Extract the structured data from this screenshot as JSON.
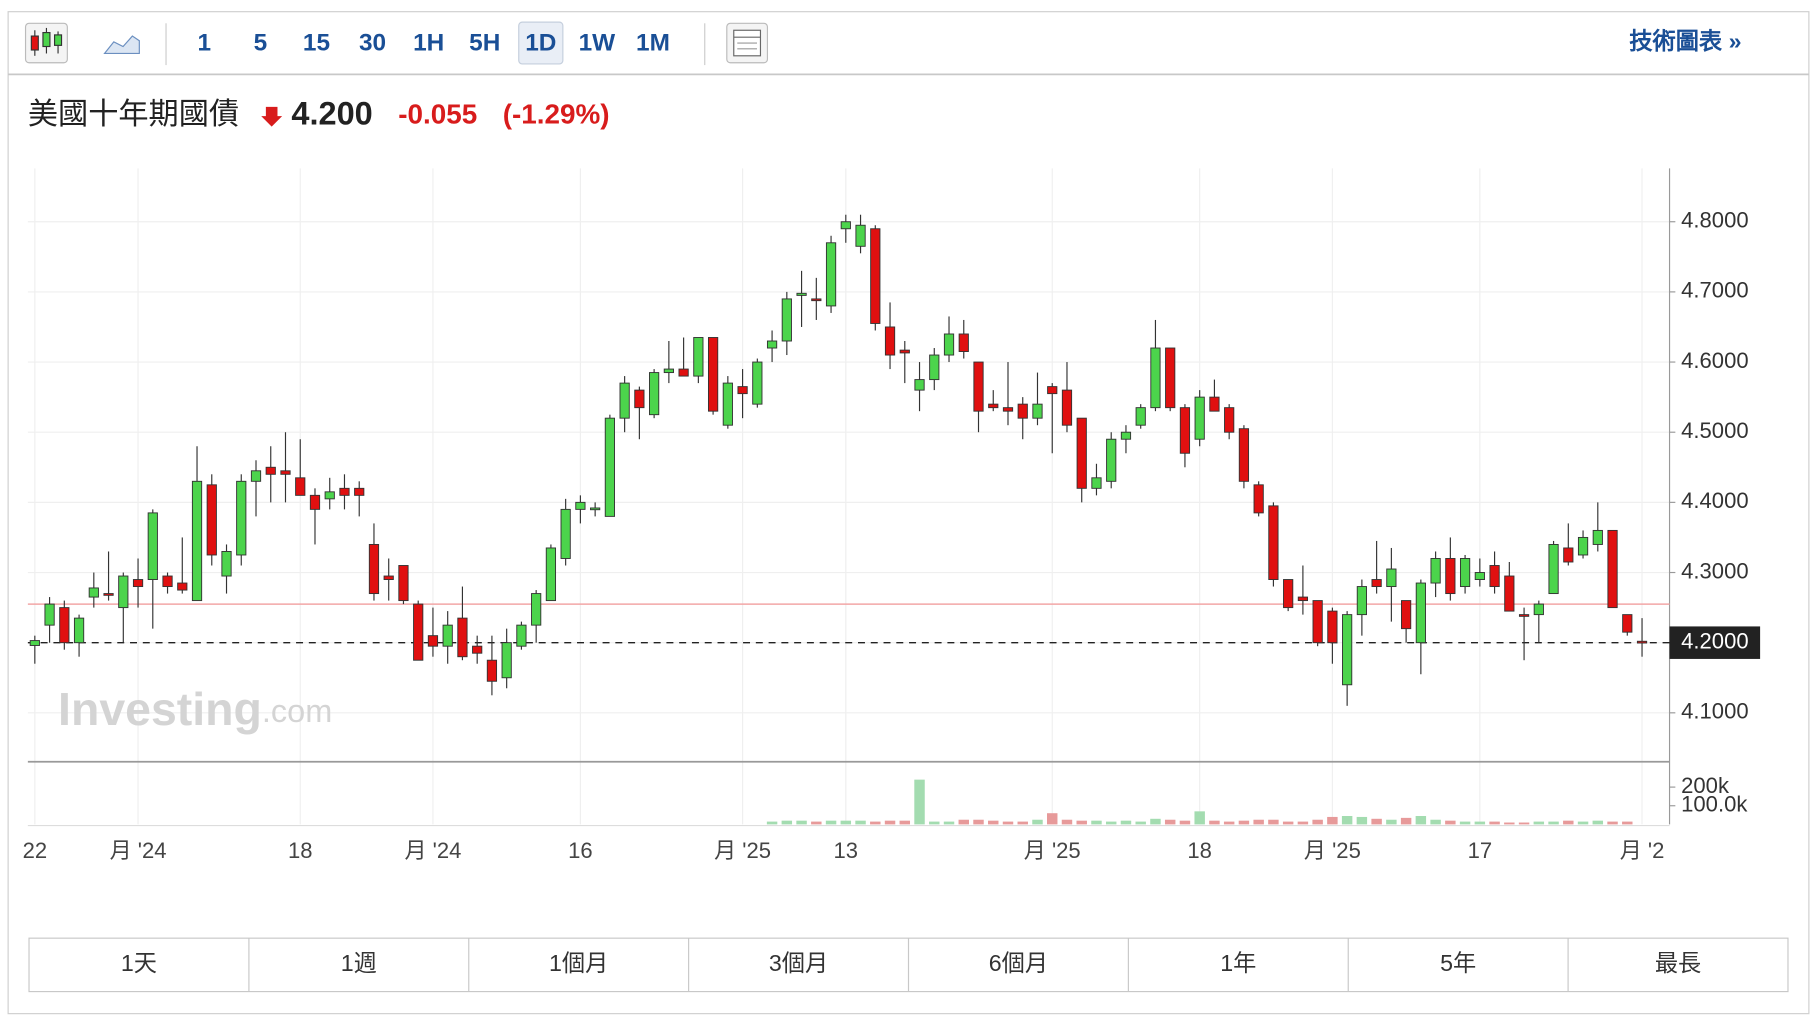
{
  "toolbar": {
    "intervals": [
      "1",
      "5",
      "15",
      "30",
      "1H",
      "5H",
      "1D",
      "1W",
      "1M"
    ],
    "selected": 6,
    "link": "技術圖表 »"
  },
  "quote": {
    "name": "美國十年期國債",
    "price": "4.200",
    "change": "-0.055",
    "change_pct": "(-1.29%)"
  },
  "chart_data": {
    "type": "candlestick",
    "categories": [
      "22",
      null,
      null,
      null,
      null,
      null,
      null,
      "月 '24",
      null,
      null,
      null,
      null,
      null,
      null,
      null,
      null,
      null,
      null,
      "18",
      null,
      null,
      null,
      null,
      null,
      null,
      null,
      null,
      "月 '24",
      null,
      null,
      null,
      null,
      null,
      null,
      null,
      null,
      null,
      "16",
      null,
      null,
      null,
      null,
      null,
      null,
      null,
      null,
      null,
      null,
      "月 '25",
      null,
      null,
      null,
      null,
      null,
      null,
      "13",
      null,
      null,
      null,
      null,
      null,
      null,
      null,
      null,
      null,
      null,
      null,
      null,
      null,
      "月 '25",
      null,
      null,
      null,
      null,
      null,
      null,
      null,
      null,
      null,
      "18",
      null,
      null,
      null,
      null,
      null,
      null,
      null,
      null,
      "月 '25",
      null,
      null,
      null,
      null,
      null,
      null,
      null,
      null,
      null,
      "17",
      null,
      null,
      null,
      null,
      null,
      null,
      null,
      null,
      null,
      null,
      "月 '2"
    ],
    "open": [
      4.196,
      4.225,
      4.25,
      4.2,
      4.265,
      4.27,
      4.25,
      4.29,
      4.29,
      4.295,
      4.285,
      4.26,
      4.425,
      4.295,
      4.325,
      4.43,
      4.45,
      4.445,
      4.435,
      4.41,
      4.405,
      4.42,
      4.42,
      4.34,
      4.295,
      4.31,
      4.255,
      4.21,
      4.195,
      4.235,
      4.195,
      4.175,
      4.15,
      4.195,
      4.225,
      4.26,
      4.32,
      4.39,
      4.39,
      4.38,
      4.52,
      4.56,
      4.525,
      4.585,
      4.59,
      4.58,
      4.635,
      4.51,
      4.565,
      4.54,
      4.62,
      4.63,
      4.695,
      4.69,
      4.68,
      4.79,
      4.765,
      4.79,
      4.65,
      4.617,
      4.56,
      4.575,
      4.61,
      4.64,
      4.6,
      4.54,
      4.535,
      4.54,
      4.52,
      4.565,
      4.56,
      4.52,
      4.42,
      4.43,
      4.49,
      4.51,
      4.535,
      4.62,
      4.535,
      4.49,
      4.55,
      4.535,
      4.505,
      4.425,
      4.395,
      4.29,
      4.265,
      4.26,
      4.245,
      4.14,
      4.24,
      4.29,
      4.28,
      4.26,
      4.2,
      4.285,
      4.32,
      4.28,
      4.29,
      4.31,
      4.295,
      4.24,
      4.24,
      4.27,
      4.335,
      4.325,
      4.34,
      4.36,
      4.24,
      4.202
    ],
    "high": [
      4.21,
      4.265,
      4.26,
      4.24,
      4.3,
      4.33,
      4.3,
      4.32,
      4.39,
      4.3,
      4.35,
      4.48,
      4.44,
      4.34,
      4.44,
      4.46,
      4.48,
      4.5,
      4.49,
      4.42,
      4.435,
      4.44,
      4.43,
      4.37,
      4.32,
      4.31,
      4.26,
      4.25,
      4.245,
      4.28,
      4.21,
      4.21,
      4.22,
      4.23,
      4.275,
      4.34,
      4.405,
      4.41,
      4.4,
      4.525,
      4.58,
      4.565,
      4.59,
      4.63,
      4.635,
      4.635,
      4.635,
      4.58,
      4.59,
      4.605,
      4.645,
      4.7,
      4.73,
      4.72,
      4.78,
      4.81,
      4.81,
      4.795,
      4.685,
      4.63,
      4.6,
      4.62,
      4.665,
      4.66,
      4.6,
      4.56,
      4.6,
      4.55,
      4.585,
      4.57,
      4.6,
      4.52,
      4.455,
      4.5,
      4.51,
      4.54,
      4.66,
      4.62,
      4.54,
      4.56,
      4.575,
      4.54,
      4.51,
      4.43,
      4.4,
      4.29,
      4.31,
      4.26,
      4.25,
      4.245,
      4.29,
      4.345,
      4.335,
      4.26,
      4.29,
      4.33,
      4.35,
      4.325,
      4.32,
      4.33,
      4.315,
      4.25,
      4.26,
      4.345,
      4.37,
      4.36,
      4.4,
      4.36,
      4.24,
      4.235
    ],
    "low": [
      4.17,
      4.2,
      4.19,
      4.18,
      4.25,
      4.26,
      4.2,
      4.25,
      4.22,
      4.27,
      4.27,
      4.26,
      4.31,
      4.27,
      4.31,
      4.38,
      4.4,
      4.4,
      4.41,
      4.34,
      4.39,
      4.39,
      4.38,
      4.26,
      4.26,
      4.255,
      4.175,
      4.18,
      4.17,
      4.175,
      4.17,
      4.125,
      4.135,
      4.19,
      4.2,
      4.26,
      4.31,
      4.37,
      4.38,
      4.38,
      4.5,
      4.49,
      4.52,
      4.57,
      4.58,
      4.57,
      4.525,
      4.505,
      4.52,
      4.535,
      4.6,
      4.61,
      4.65,
      4.66,
      4.67,
      4.77,
      4.755,
      4.645,
      4.59,
      4.57,
      4.53,
      4.56,
      4.6,
      4.605,
      4.5,
      4.53,
      4.51,
      4.49,
      4.51,
      4.47,
      4.5,
      4.4,
      4.41,
      4.42,
      4.47,
      4.505,
      4.53,
      4.53,
      4.45,
      4.48,
      4.53,
      4.49,
      4.42,
      4.38,
      4.28,
      4.245,
      4.24,
      4.195,
      4.17,
      4.11,
      4.21,
      4.27,
      4.23,
      4.2,
      4.155,
      4.265,
      4.26,
      4.27,
      4.28,
      4.27,
      4.245,
      4.175,
      4.2,
      4.27,
      4.31,
      4.32,
      4.33,
      4.25,
      4.21,
      4.18
    ],
    "close": [
      4.203,
      4.255,
      4.2,
      4.235,
      4.278,
      4.268,
      4.295,
      4.28,
      4.385,
      4.28,
      4.275,
      4.43,
      4.325,
      4.33,
      4.43,
      4.445,
      4.44,
      4.44,
      4.41,
      4.39,
      4.415,
      4.41,
      4.41,
      4.27,
      4.29,
      4.26,
      4.175,
      4.195,
      4.225,
      4.18,
      4.185,
      4.145,
      4.2,
      4.225,
      4.27,
      4.335,
      4.39,
      4.4,
      4.392,
      4.52,
      4.57,
      4.535,
      4.585,
      4.59,
      4.58,
      4.635,
      4.53,
      4.57,
      4.555,
      4.6,
      4.63,
      4.69,
      4.698,
      4.688,
      4.77,
      4.8,
      4.795,
      4.655,
      4.61,
      4.613,
      4.575,
      4.61,
      4.64,
      4.615,
      4.53,
      4.535,
      4.53,
      4.52,
      4.54,
      4.555,
      4.51,
      4.42,
      4.435,
      4.49,
      4.5,
      4.535,
      4.62,
      4.535,
      4.47,
      4.55,
      4.53,
      4.5,
      4.43,
      4.385,
      4.29,
      4.25,
      4.26,
      4.2,
      4.2,
      4.24,
      4.28,
      4.28,
      4.305,
      4.22,
      4.285,
      4.32,
      4.27,
      4.32,
      4.3,
      4.28,
      4.245,
      4.238,
      4.255,
      4.34,
      4.315,
      4.35,
      4.36,
      4.25,
      4.215,
      4.2
    ],
    "volume": [
      null,
      null,
      null,
      null,
      null,
      null,
      null,
      null,
      null,
      null,
      null,
      null,
      null,
      null,
      null,
      null,
      null,
      null,
      null,
      null,
      null,
      null,
      null,
      null,
      null,
      null,
      null,
      null,
      null,
      null,
      null,
      null,
      null,
      null,
      null,
      null,
      null,
      null,
      null,
      null,
      null,
      null,
      null,
      null,
      null,
      null,
      null,
      null,
      null,
      null,
      15000,
      20000,
      20000,
      15000,
      20000,
      20000,
      20000,
      15000,
      20000,
      20000,
      240000,
      15000,
      15000,
      25000,
      25000,
      20000,
      15000,
      15000,
      25000,
      60000,
      25000,
      20000,
      20000,
      15000,
      20000,
      15000,
      30000,
      25000,
      20000,
      70000,
      20000,
      15000,
      20000,
      25000,
      25000,
      15000,
      15000,
      25000,
      40000,
      45000,
      40000,
      30000,
      25000,
      35000,
      45000,
      25000,
      20000,
      15000,
      15000,
      15000,
      10000,
      10000,
      15000,
      15000,
      20000,
      15000,
      20000,
      15000,
      15000,
      null
    ],
    "up_color": "#4cd44c",
    "down_color": "#e01010",
    "volume_up_color": "#a3dcb0",
    "volume_down_color": "#e79a9a",
    "ylim": [
      4.032,
      4.876
    ],
    "yticks": [
      {
        "value": 4.1,
        "label": "4.1000"
      },
      {
        "value": 4.2,
        "label": "4.2000"
      },
      {
        "value": 4.3,
        "label": "4.3000"
      },
      {
        "value": 4.4,
        "label": "4.4000"
      },
      {
        "value": 4.5,
        "label": "4.5000"
      },
      {
        "value": 4.6,
        "label": "4.6000"
      },
      {
        "value": 4.7,
        "label": "4.7000"
      },
      {
        "value": 4.8,
        "label": "4.8000"
      }
    ],
    "volume_ylim": [
      0,
      330000
    ],
    "volume_yticks": [
      {
        "value": 100000,
        "label": "100.0k"
      },
      {
        "value": 200000,
        "label": "200k"
      }
    ],
    "last_price": {
      "value": 4.2,
      "label": "4.2000"
    },
    "reference_line": 4.255,
    "grid": true,
    "watermark": {
      "brand": "Investing",
      "suffix": ".com"
    }
  },
  "ranges": [
    "1天",
    "1週",
    "1個月",
    "3個月",
    "6個月",
    "1年",
    "5年",
    "最長"
  ]
}
